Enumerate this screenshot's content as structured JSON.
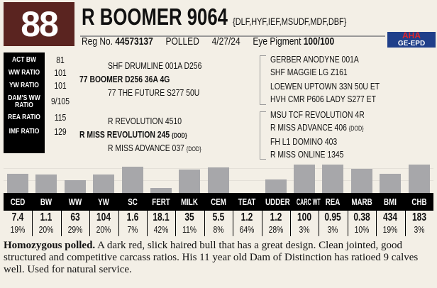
{
  "lot": "88",
  "name": "R BOOMER 9064",
  "defects": "{DLF,HYF,IEF,MSUDF,MDF,DBF}",
  "reg_label": "Reg No.",
  "reg_no": "44573137",
  "polled": "POLLED",
  "birth_date": "4/27/24",
  "eye_label": "Eye Pigment",
  "eye_value": "100/100",
  "logo": {
    "top": "AHA",
    "bottom": "GE-EPD"
  },
  "stats": [
    {
      "label": "ACT BW",
      "value": "81"
    },
    {
      "label": "WW RATIO",
      "value": "101"
    },
    {
      "label": "YW RATIO",
      "value": "101"
    },
    {
      "label": "DAM'S WW RATIO",
      "value": "9/105"
    },
    {
      "label": "REA RATIO",
      "value": "115"
    },
    {
      "label": "IMF RATIO",
      "value": "129"
    }
  ],
  "pedigree": {
    "sire": "77 BOOMER D256 36A 4G",
    "sire_sire": "SHF DRUMLINE 001A D256",
    "sire_dam": "77 THE FUTURE S277 50U",
    "dam": "R MISS REVOLUTION 245",
    "dam_tag": "{DOD}",
    "dam_sire": "R REVOLUTION 4510",
    "dam_dam": "R MISS ADVANCE 037",
    "dam_dam_tag": "{DOD}",
    "g": [
      "GERBER ANODYNE 001A",
      "SHF MAGGIE LG Z161",
      "LOEWEN UPTOWN 33N 50U ET",
      "HVH CMR P606 LADY S277 ET",
      "MSU TCF REVOLUTION 4R",
      "R MISS ADVANCE 406",
      "FH L1 DOMINO 403",
      "R MISS ONLINE 1345"
    ],
    "g_tag": "{DOD}"
  },
  "epds": [
    {
      "trait": "CED",
      "value": "7.4",
      "pct": 19
    },
    {
      "trait": "BW",
      "value": "1.1",
      "pct": 20
    },
    {
      "trait": "WW",
      "value": "63",
      "pct": 29
    },
    {
      "trait": "YW",
      "value": "104",
      "pct": 20
    },
    {
      "trait": "SC",
      "value": "1.6",
      "pct": 7
    },
    {
      "trait": "FERT",
      "value": "18.1",
      "pct": 42
    },
    {
      "trait": "MILK",
      "value": "35",
      "pct": 11
    },
    {
      "trait": "CEM",
      "value": "5.5",
      "pct": 8
    },
    {
      "trait": "TEAT",
      "value": "1.2",
      "pct": 64
    },
    {
      "trait": "UDDER",
      "value": "1.2",
      "pct": 28
    },
    {
      "trait": "CARC WT",
      "value": "100",
      "pct": 3
    },
    {
      "trait": "REA",
      "value": "0.95",
      "pct": 3
    },
    {
      "trait": "MARB",
      "value": "0.38",
      "pct": 10
    },
    {
      "trait": "BMI",
      "value": "434",
      "pct": 19
    },
    {
      "trait": "CHB",
      "value": "183",
      "pct": 3
    }
  ],
  "desc_bold": "Homozygous polled.",
  "desc": " A dark red, slick haired bull that has a great design. Clean jointed, good structured and competitive carcass ratios. His 11 year old Dam of Distinction has ratioed 9 calves well. Used for natural service.",
  "colors": {
    "lot_bg": "#5a2420",
    "bar": "#a7a7aa"
  }
}
